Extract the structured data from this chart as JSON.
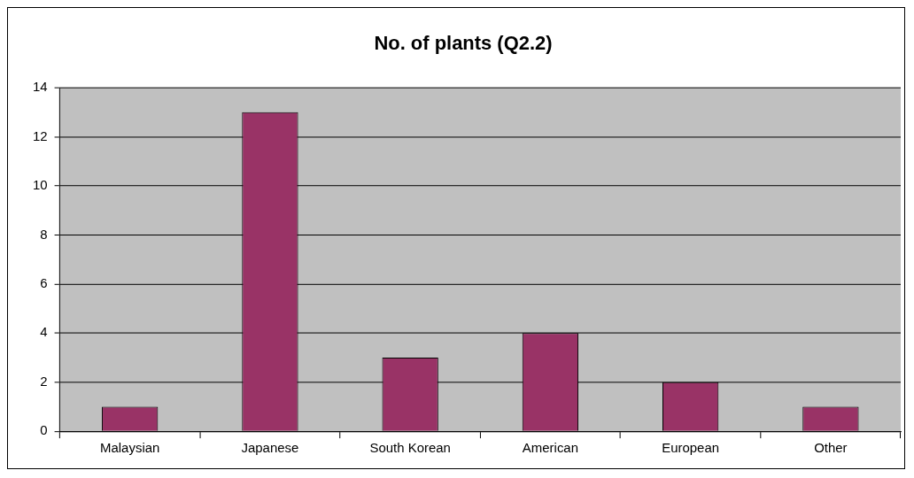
{
  "chart_data": {
    "type": "bar",
    "title": "No. of plants (Q2.2)",
    "categories": [
      "Malaysian",
      "Japanese",
      "South Korean",
      "American",
      "European",
      "Other"
    ],
    "values": [
      1,
      13,
      3,
      4,
      2,
      1
    ],
    "color": "#993366",
    "ylim": [
      0,
      14
    ],
    "yticks": [
      0,
      2,
      4,
      6,
      8,
      10,
      12,
      14
    ],
    "grid": "y",
    "legend": false
  }
}
